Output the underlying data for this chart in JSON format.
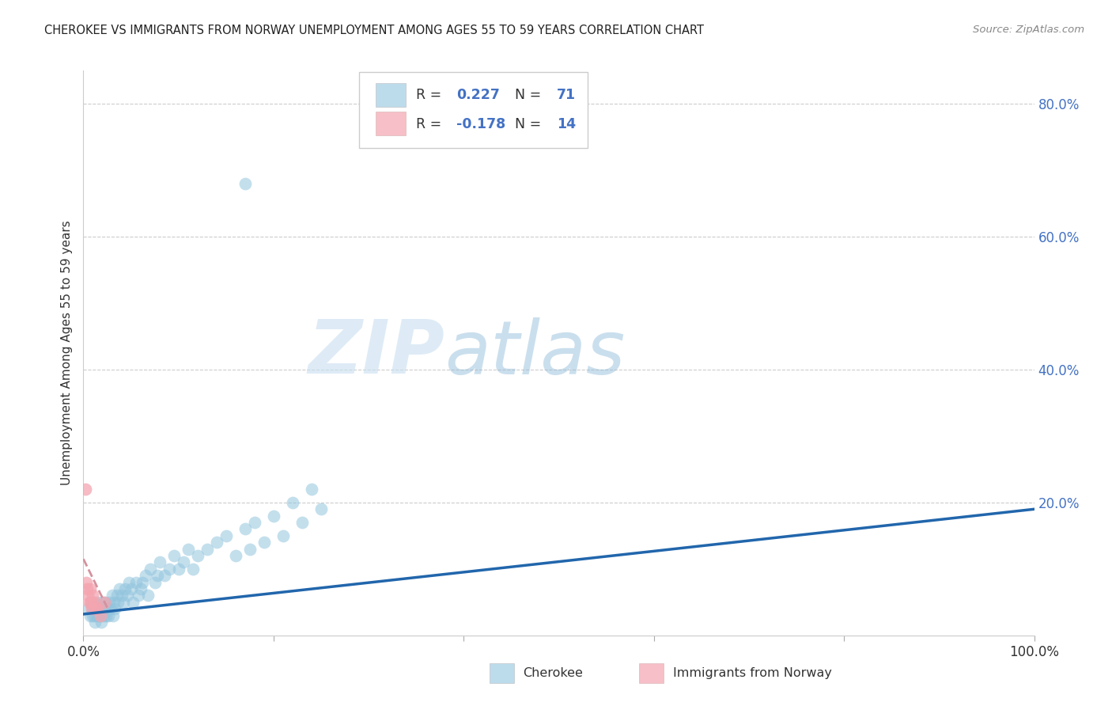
{
  "title": "CHEROKEE VS IMMIGRANTS FROM NORWAY UNEMPLOYMENT AMONG AGES 55 TO 59 YEARS CORRELATION CHART",
  "source": "Source: ZipAtlas.com",
  "ylabel": "Unemployment Among Ages 55 to 59 years",
  "watermark_zip": "ZIP",
  "watermark_atlas": "atlas",
  "xlim": [
    0.0,
    1.0
  ],
  "ylim": [
    0.0,
    0.85
  ],
  "cherokee_color": "#92c5de",
  "norway_color": "#f4a5b0",
  "cherokee_R": 0.227,
  "cherokee_N": 71,
  "norway_R": -0.178,
  "norway_N": 14,
  "blue_line_color": "#2166ac",
  "pink_line_color": "#d4929e",
  "r_n_color": "#4472c4",
  "cherokee_x": [
    0.005,
    0.007,
    0.008,
    0.01,
    0.01,
    0.012,
    0.012,
    0.013,
    0.015,
    0.015,
    0.016,
    0.017,
    0.018,
    0.019,
    0.02,
    0.02,
    0.021,
    0.022,
    0.023,
    0.024,
    0.025,
    0.026,
    0.027,
    0.028,
    0.03,
    0.031,
    0.032,
    0.033,
    0.035,
    0.036,
    0.038,
    0.04,
    0.042,
    0.044,
    0.046,
    0.048,
    0.05,
    0.052,
    0.055,
    0.058,
    0.06,
    0.062,
    0.065,
    0.068,
    0.07,
    0.075,
    0.078,
    0.08,
    0.085,
    0.09,
    0.095,
    0.1,
    0.105,
    0.11,
    0.115,
    0.12,
    0.13,
    0.14,
    0.15,
    0.16,
    0.17,
    0.175,
    0.18,
    0.19,
    0.2,
    0.21,
    0.22,
    0.23,
    0.24,
    0.25,
    0.17
  ],
  "cherokee_y": [
    0.04,
    0.03,
    0.05,
    0.03,
    0.04,
    0.03,
    0.02,
    0.04,
    0.03,
    0.05,
    0.03,
    0.04,
    0.03,
    0.02,
    0.04,
    0.05,
    0.03,
    0.04,
    0.05,
    0.03,
    0.04,
    0.03,
    0.05,
    0.04,
    0.06,
    0.03,
    0.05,
    0.04,
    0.06,
    0.05,
    0.07,
    0.06,
    0.05,
    0.07,
    0.06,
    0.08,
    0.07,
    0.05,
    0.08,
    0.06,
    0.07,
    0.08,
    0.09,
    0.06,
    0.1,
    0.08,
    0.09,
    0.11,
    0.09,
    0.1,
    0.12,
    0.1,
    0.11,
    0.13,
    0.1,
    0.12,
    0.13,
    0.14,
    0.15,
    0.12,
    0.16,
    0.13,
    0.17,
    0.14,
    0.18,
    0.15,
    0.2,
    0.17,
    0.22,
    0.19,
    0.68
  ],
  "norway_x": [
    0.002,
    0.003,
    0.004,
    0.005,
    0.006,
    0.007,
    0.008,
    0.009,
    0.01,
    0.011,
    0.013,
    0.015,
    0.018,
    0.022
  ],
  "norway_y": [
    0.22,
    0.08,
    0.07,
    0.06,
    0.05,
    0.07,
    0.05,
    0.04,
    0.06,
    0.05,
    0.04,
    0.04,
    0.03,
    0.05
  ],
  "blue_line_x0": 0.0,
  "blue_line_y0": 0.032,
  "blue_line_x1": 1.0,
  "blue_line_y1": 0.19,
  "pink_line_x0": 0.0,
  "pink_line_y0": 0.115,
  "pink_line_x1": 0.025,
  "pink_line_y1": 0.042
}
